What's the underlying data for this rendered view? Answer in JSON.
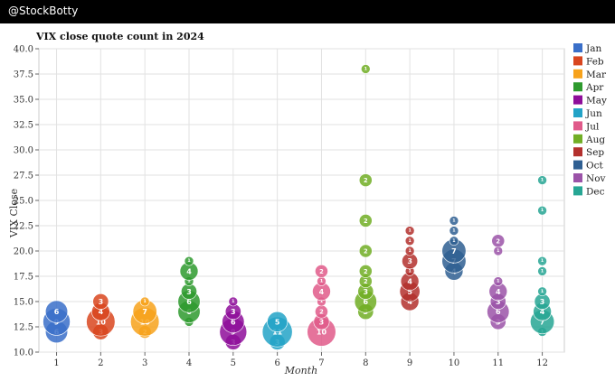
{
  "header": {
    "handle": "@StockBotty"
  },
  "chart_data": {
    "type": "scatter",
    "title": "VIX close quote count in 2024",
    "xlabel": "Month",
    "ylabel": "VIX Close",
    "xlim": [
      0.6,
      12.5
    ],
    "ylim": [
      10.0,
      40.0
    ],
    "xticks": [
      "1",
      "2",
      "3",
      "4",
      "5",
      "6",
      "7",
      "8",
      "9",
      "10",
      "11",
      "12"
    ],
    "yticks": [
      "10.0",
      "12.5",
      "15.0",
      "17.5",
      "20.0",
      "22.5",
      "25.0",
      "27.5",
      "30.0",
      "32.5",
      "35.0",
      "37.5",
      "40.0"
    ],
    "legend_position": "right",
    "grid": true,
    "size_encoding": "count of closes at that value",
    "series": [
      {
        "name": "Jan",
        "color": "#3A6FC9",
        "points": [
          {
            "x": 1,
            "y": 12,
            "count": 6
          },
          {
            "x": 1,
            "y": 13,
            "count": 9
          },
          {
            "x": 1,
            "y": 14,
            "count": 6
          }
        ]
      },
      {
        "name": "Feb",
        "color": "#D9461F",
        "points": [
          {
            "x": 2,
            "y": 12,
            "count": 3
          },
          {
            "x": 2,
            "y": 13,
            "count": 10
          },
          {
            "x": 2,
            "y": 14,
            "count": 4
          },
          {
            "x": 2,
            "y": 15,
            "count": 3
          }
        ]
      },
      {
        "name": "Mar",
        "color": "#F7A21B",
        "points": [
          {
            "x": 3,
            "y": 12,
            "count": 2
          },
          {
            "x": 3,
            "y": 13,
            "count": 10
          },
          {
            "x": 3,
            "y": 14,
            "count": 7
          },
          {
            "x": 3,
            "y": 15,
            "count": 1
          }
        ]
      },
      {
        "name": "Apr",
        "color": "#2E9A2E",
        "points": [
          {
            "x": 4,
            "y": 13,
            "count": 1
          },
          {
            "x": 4,
            "y": 14,
            "count": 6
          },
          {
            "x": 4,
            "y": 15,
            "count": 6
          },
          {
            "x": 4,
            "y": 16,
            "count": 3
          },
          {
            "x": 4,
            "y": 17,
            "count": 1
          },
          {
            "x": 4,
            "y": 18,
            "count": 4
          },
          {
            "x": 4,
            "y": 19,
            "count": 1
          }
        ]
      },
      {
        "name": "May",
        "color": "#8E0E9A",
        "points": [
          {
            "x": 5,
            "y": 11,
            "count": 3
          },
          {
            "x": 5,
            "y": 12,
            "count": 9
          },
          {
            "x": 5,
            "y": 13,
            "count": 6
          },
          {
            "x": 5,
            "y": 14,
            "count": 3
          },
          {
            "x": 5,
            "y": 15,
            "count": 1
          }
        ]
      },
      {
        "name": "Jun",
        "color": "#23A3C7",
        "points": [
          {
            "x": 6,
            "y": 11,
            "count": 3
          },
          {
            "x": 6,
            "y": 12,
            "count": 11
          },
          {
            "x": 6,
            "y": 13,
            "count": 5
          }
        ]
      },
      {
        "name": "Jul",
        "color": "#E05A8A",
        "points": [
          {
            "x": 7,
            "y": 12,
            "count": 10
          },
          {
            "x": 7,
            "y": 13,
            "count": 3
          },
          {
            "x": 7,
            "y": 14,
            "count": 2
          },
          {
            "x": 7,
            "y": 15,
            "count": 1
          },
          {
            "x": 7,
            "y": 16,
            "count": 4
          },
          {
            "x": 7,
            "y": 17,
            "count": 1
          },
          {
            "x": 7,
            "y": 18,
            "count": 2
          }
        ]
      },
      {
        "name": "Aug",
        "color": "#71AE25",
        "points": [
          {
            "x": 8,
            "y": 14,
            "count": 3
          },
          {
            "x": 8,
            "y": 15,
            "count": 6
          },
          {
            "x": 8,
            "y": 16,
            "count": 3
          },
          {
            "x": 8,
            "y": 17,
            "count": 2
          },
          {
            "x": 8,
            "y": 18,
            "count": 2
          },
          {
            "x": 8,
            "y": 20,
            "count": 2
          },
          {
            "x": 8,
            "y": 23,
            "count": 2
          },
          {
            "x": 8,
            "y": 27,
            "count": 2
          },
          {
            "x": 8,
            "y": 38,
            "count": 1
          }
        ]
      },
      {
        "name": "Sep",
        "color": "#B3302D",
        "points": [
          {
            "x": 9,
            "y": 15,
            "count": 4
          },
          {
            "x": 9,
            "y": 16,
            "count": 5
          },
          {
            "x": 9,
            "y": 17,
            "count": 4
          },
          {
            "x": 9,
            "y": 18,
            "count": 1
          },
          {
            "x": 9,
            "y": 19,
            "count": 3
          },
          {
            "x": 9,
            "y": 20,
            "count": 1
          },
          {
            "x": 9,
            "y": 21,
            "count": 1
          },
          {
            "x": 9,
            "y": 22,
            "count": 1
          }
        ]
      },
      {
        "name": "Oct",
        "color": "#2F5F92",
        "points": [
          {
            "x": 10,
            "y": 18,
            "count": 4
          },
          {
            "x": 10,
            "y": 19,
            "count": 7
          },
          {
            "x": 10,
            "y": 20,
            "count": 7
          },
          {
            "x": 10,
            "y": 21,
            "count": 1
          },
          {
            "x": 10,
            "y": 22,
            "count": 1
          },
          {
            "x": 10,
            "y": 23,
            "count": 1
          }
        ]
      },
      {
        "name": "Nov",
        "color": "#9B53A8",
        "points": [
          {
            "x": 11,
            "y": 13,
            "count": 3
          },
          {
            "x": 11,
            "y": 14,
            "count": 6
          },
          {
            "x": 11,
            "y": 15,
            "count": 3
          },
          {
            "x": 11,
            "y": 16,
            "count": 4
          },
          {
            "x": 11,
            "y": 17,
            "count": 1
          },
          {
            "x": 11,
            "y": 20,
            "count": 1
          },
          {
            "x": 11,
            "y": 21,
            "count": 2
          }
        ]
      },
      {
        "name": "Dec",
        "color": "#27A694",
        "points": [
          {
            "x": 12,
            "y": 12,
            "count": 1
          },
          {
            "x": 12,
            "y": 13,
            "count": 7
          },
          {
            "x": 12,
            "y": 14,
            "count": 4
          },
          {
            "x": 12,
            "y": 15,
            "count": 3
          },
          {
            "x": 12,
            "y": 16,
            "count": 1
          },
          {
            "x": 12,
            "y": 18,
            "count": 1
          },
          {
            "x": 12,
            "y": 19,
            "count": 1
          },
          {
            "x": 12,
            "y": 24,
            "count": 1
          },
          {
            "x": 12,
            "y": 27,
            "count": 1
          }
        ]
      }
    ]
  }
}
